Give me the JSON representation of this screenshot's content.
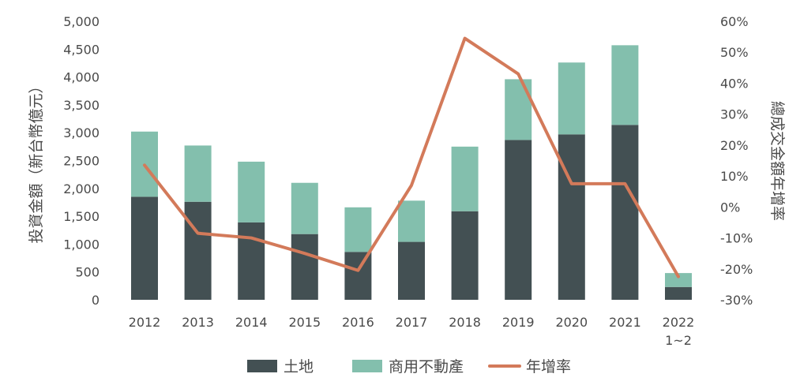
{
  "chart_data": {
    "type": "bar",
    "stacked": true,
    "categories": [
      "2012",
      "2013",
      "2014",
      "2015",
      "2016",
      "2017",
      "2018",
      "2019",
      "2020",
      "2021",
      "2022\n1~2"
    ],
    "series": [
      {
        "name": "土地",
        "kind": "bar",
        "axis": "left",
        "color": "#435053",
        "values": [
          1850,
          1760,
          1390,
          1180,
          860,
          1040,
          1590,
          2870,
          2970,
          3140,
          230
        ]
      },
      {
        "name": "商用不動產",
        "kind": "bar",
        "axis": "left",
        "color": "#83bfad",
        "values": [
          1170,
          1010,
          1090,
          920,
          800,
          740,
          1160,
          1090,
          1290,
          1430,
          250
        ]
      },
      {
        "name": "年增率",
        "kind": "line",
        "axis": "right",
        "color": "#d37a5a",
        "values": [
          13.5,
          -8.5,
          -10,
          -15,
          -20.5,
          7,
          54.5,
          43,
          7.5,
          7.5,
          -22.5
        ]
      }
    ],
    "ylabel": "投資金額（新台幣億元）",
    "ylabel_right": "總成交金額年增率",
    "ylim": [
      0,
      5000
    ],
    "yticks": [
      "0",
      "500",
      "1,000",
      "1,500",
      "2,000",
      "2,500",
      "3,000",
      "3,500",
      "4,000",
      "4,500",
      "5,000"
    ],
    "y2lim": [
      -30,
      60
    ],
    "y2ticks": [
      "-30%",
      "-20%",
      "-10%",
      "0%",
      "10%",
      "20%",
      "30%",
      "40%",
      "50%",
      "60%"
    ],
    "legend_position": "bottom",
    "grid": false
  }
}
